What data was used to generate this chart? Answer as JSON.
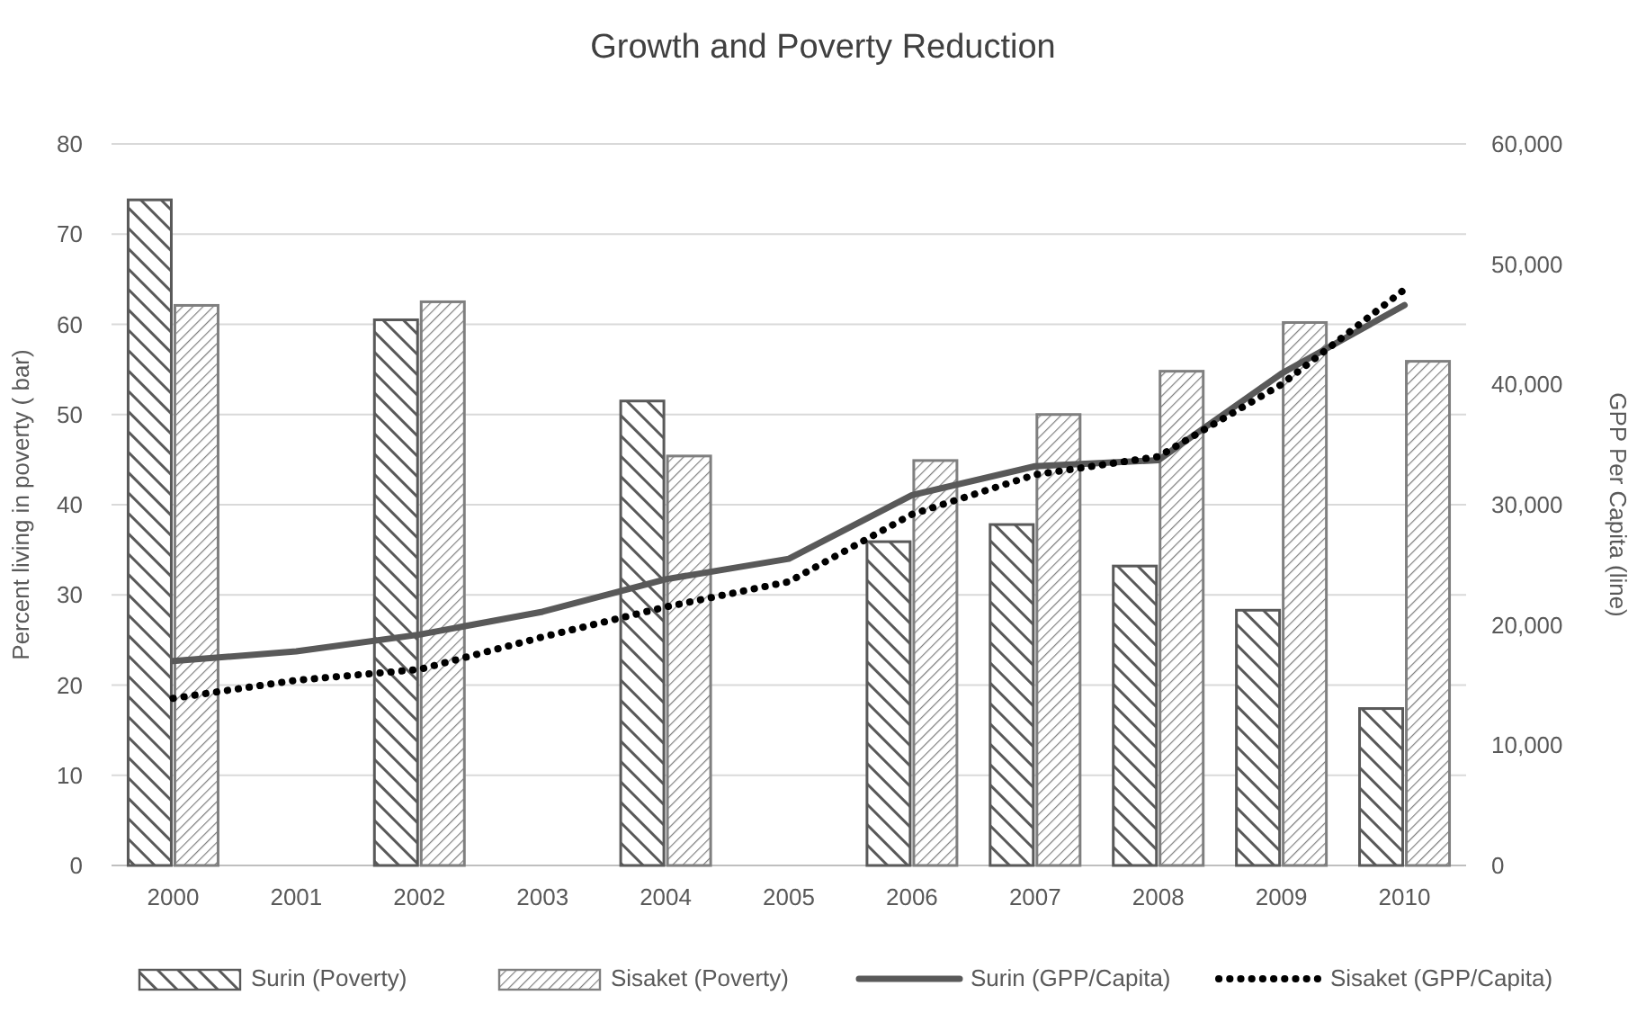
{
  "chart_data": {
    "type": "bar",
    "title": "Growth and Poverty Reduction",
    "ylabel": "Percent living in poverty ( bar)",
    "y2label": "GPP Per Capita (line)",
    "categories": [
      "2000",
      "2001",
      "2002",
      "2003",
      "2004",
      "2005",
      "2006",
      "2007",
      "2008",
      "2009",
      "2010"
    ],
    "series": [
      {
        "name": "Surin (Poverty)",
        "color": "#595959",
        "values": [
          73.8,
          null,
          60.5,
          null,
          51.5,
          null,
          35.9,
          37.8,
          33.2,
          28.3,
          17.4
        ]
      },
      {
        "name": "Sisaket (Poverty)",
        "color": "#7f7f7f",
        "values": [
          62.1,
          null,
          62.5,
          null,
          45.4,
          null,
          44.9,
          50,
          54.8,
          60.2,
          55.9
        ]
      },
      {
        "name": "Surin (GPP/Capita)",
        "type": "line",
        "axis": "y2",
        "line_style": "solid",
        "color": "#595959",
        "values": [
          17000,
          17800,
          19200,
          21100,
          23800,
          25500,
          30800,
          33200,
          33700,
          40900,
          46600
        ]
      },
      {
        "name": "Sisaket (GPP/Capita)",
        "type": "line",
        "axis": "y2",
        "line_style": "dotted",
        "color": "#000000",
        "values": [
          13900,
          15400,
          16300,
          19000,
          21500,
          23600,
          29200,
          32500,
          34000,
          40000,
          47900
        ]
      }
    ],
    "ylim": [
      0,
      80
    ],
    "yticks": [
      0,
      10,
      20,
      30,
      40,
      50,
      60,
      70,
      80
    ],
    "y2lim": [
      0,
      60000
    ],
    "y2ticks": [
      0,
      {
        "value": 10000,
        "label": "10,000"
      },
      {
        "value": 20000,
        "label": "20,000"
      },
      {
        "value": 30000,
        "label": "30,000"
      },
      {
        "value": 40000,
        "label": "40,000"
      },
      {
        "value": 50000,
        "label": "50,000"
      },
      {
        "value": 60000,
        "label": "60,000"
      }
    ],
    "grid": "y",
    "legend": "bottom"
  }
}
